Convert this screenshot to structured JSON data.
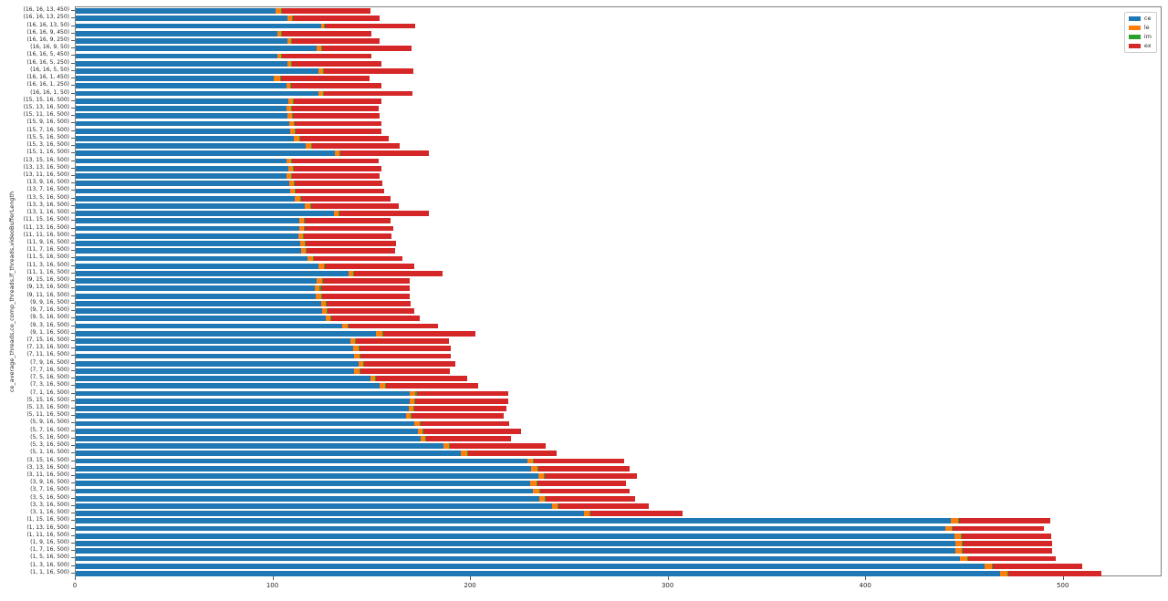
{
  "chart_data": {
    "type": "bar",
    "stacked": true,
    "orientation": "horizontal",
    "title": "",
    "xlabel": "",
    "ylabel": "ce_average_threads,ce_comp_threads,lf_threads,videoBufferLength",
    "xlim": [
      0,
      550
    ],
    "xticks": [
      0,
      100,
      200,
      300,
      400,
      500
    ],
    "grid": false,
    "legend_position": "upper right",
    "categories": [
      "(16, 16, 13, 450)",
      "(16, 16, 13, 250)",
      "(16, 16, 13, 50)",
      "(16, 16, 9, 450)",
      "(16, 16, 9, 250)",
      "(16, 16, 9, 50)",
      "(16, 16, 5, 450)",
      "(16, 16, 5, 250)",
      "(16, 16, 5, 50)",
      "(16, 16, 1, 450)",
      "(16, 16, 1, 250)",
      "(16, 16, 1, 50)",
      "(15, 15, 16, 500)",
      "(15, 13, 16, 500)",
      "(15, 11, 16, 500)",
      "(15, 9, 16, 500)",
      "(15, 7, 16, 500)",
      "(15, 5, 16, 500)",
      "(15, 3, 16, 500)",
      "(15, 1, 16, 500)",
      "(13, 15, 16, 500)",
      "(13, 13, 16, 500)",
      "(13, 11, 16, 500)",
      "(13, 9, 16, 500)",
      "(13, 7, 16, 500)",
      "(13, 5, 16, 500)",
      "(13, 3, 16, 500)",
      "(13, 1, 16, 500)",
      "(11, 15, 16, 500)",
      "(11, 13, 16, 500)",
      "(11, 11, 16, 500)",
      "(11, 9, 16, 500)",
      "(11, 7, 16, 500)",
      "(11, 5, 16, 500)",
      "(11, 3, 16, 500)",
      "(11, 1, 16, 500)",
      "(9, 15, 16, 500)",
      "(9, 13, 16, 500)",
      "(9, 11, 16, 500)",
      "(9, 9, 16, 500)",
      "(9, 7, 16, 500)",
      "(9, 5, 16, 500)",
      "(9, 3, 16, 500)",
      "(9, 1, 16, 500)",
      "(7, 15, 16, 500)",
      "(7, 13, 16, 500)",
      "(7, 11, 16, 500)",
      "(7, 9, 16, 500)",
      "(7, 7, 16, 500)",
      "(7, 5, 16, 500)",
      "(7, 3, 16, 500)",
      "(7, 1, 16, 500)",
      "(5, 15, 16, 500)",
      "(5, 13, 16, 500)",
      "(5, 11, 16, 500)",
      "(5, 9, 16, 500)",
      "(5, 7, 16, 500)",
      "(5, 5, 16, 500)",
      "(5, 3, 16, 500)",
      "(5, 1, 16, 500)",
      "(3, 15, 16, 500)",
      "(3, 13, 16, 500)",
      "(3, 11, 16, 500)",
      "(3, 9, 16, 500)",
      "(3, 7, 16, 500)",
      "(3, 5, 16, 500)",
      "(3, 3, 16, 500)",
      "(3, 1, 16, 500)",
      "(1, 15, 16, 500)",
      "(1, 13, 16, 500)",
      "(1, 11, 16, 500)",
      "(1, 9, 16, 500)",
      "(1, 7, 16, 500)",
      "(1, 5, 16, 500)",
      "(1, 3, 16, 500)",
      "(1, 1, 16, 500)"
    ],
    "series": [
      {
        "name": "ce",
        "color": "#1f77b4",
        "values": [
          101,
          107,
          124,
          102,
          107,
          122,
          102,
          107,
          123,
          100,
          106.5,
          123,
          107.5,
          106.5,
          107,
          108,
          108.5,
          110.5,
          116.5,
          131,
          106.5,
          107.5,
          106.5,
          108,
          108.5,
          111,
          116,
          130.5,
          113,
          113,
          112.5,
          113.5,
          114,
          117.5,
          123,
          138,
          122,
          121,
          121.5,
          124,
          124.5,
          126.5,
          135,
          152,
          139,
          140.5,
          141,
          143,
          141,
          149,
          154,
          169,
          169,
          168.5,
          167,
          171.5,
          173,
          174.5,
          186,
          195,
          228.5,
          230.5,
          234,
          230,
          231.5,
          234.5,
          241,
          257,
          443,
          440,
          444.5,
          445,
          445,
          447.5,
          460,
          468
        ]
      },
      {
        "name": "le",
        "color": "#ff7f0e",
        "values": [
          3,
          2.5,
          1.5,
          2,
          2,
          2,
          2,
          2,
          2,
          3.5,
          2,
          2,
          2.5,
          2.5,
          2.5,
          2.5,
          2.5,
          2.5,
          2.5,
          2.5,
          2.5,
          2.5,
          2.5,
          2.5,
          2.5,
          2.5,
          2.5,
          2.5,
          2.5,
          2.5,
          2.5,
          2.5,
          2.5,
          2.5,
          2.5,
          2.5,
          2.5,
          2.5,
          2.5,
          2.5,
          2.5,
          2.5,
          2.5,
          3,
          2.5,
          2.5,
          2.5,
          2.5,
          2.5,
          2.5,
          2.5,
          3,
          2.5,
          2.5,
          2.5,
          2.5,
          2.5,
          2.5,
          3,
          3,
          3,
          3,
          3,
          3,
          3,
          3,
          3,
          3,
          3.5,
          3.5,
          3.5,
          3.5,
          3.5,
          3.5,
          3.5,
          3.5
        ]
      },
      {
        "name": "im",
        "color": "#2ca02c",
        "values": [
          0.5,
          0.5,
          0.5,
          0.5,
          0.5,
          0.5,
          0.5,
          0.5,
          0.5,
          0.5,
          0.5,
          0.5,
          0.5,
          0.5,
          0.5,
          0.5,
          0.5,
          0.5,
          0.5,
          0.5,
          0.5,
          0.5,
          0.5,
          0.5,
          0.5,
          0.5,
          0.5,
          0.5,
          0.5,
          0.5,
          0.5,
          0.5,
          0.5,
          0.5,
          0.5,
          0.5,
          0.5,
          0.5,
          0.5,
          0.5,
          0.5,
          0.5,
          0.5,
          0.5,
          0.5,
          0.5,
          0.5,
          0.5,
          0.5,
          0.5,
          0.5,
          0.5,
          0.5,
          0.5,
          0.5,
          0.5,
          0.5,
          0.5,
          0.5,
          0.5,
          0.5,
          0.5,
          0.5,
          0.5,
          0.5,
          0.5,
          0.5,
          0.5,
          0.5,
          0.5,
          0.5,
          0.5,
          0.5,
          0.5,
          0.5,
          0.5
        ]
      },
      {
        "name": "ex",
        "color": "#d62728",
        "values": [
          44.5,
          44,
          46,
          45,
          44.5,
          45.5,
          45,
          45,
          45.5,
          44.5,
          45.5,
          45,
          44,
          44,
          44,
          43.5,
          43,
          45,
          44.5,
          44.5,
          44,
          44,
          44.5,
          44,
          44.5,
          45.5,
          44.5,
          45,
          43.5,
          44.5,
          44.5,
          45.5,
          44.5,
          45,
          45.5,
          44.5,
          44,
          45,
          44.5,
          42.5,
          44,
          44.5,
          45.5,
          47,
          47,
          46.5,
          46,
          46,
          45.5,
          46,
          46.5,
          46.5,
          47,
          46.5,
          46.5,
          45,
          49.5,
          43,
          48.5,
          45,
          45.5,
          46.5,
          46.5,
          45,
          45.5,
          45,
          45.5,
          46.5,
          46,
          46,
          45,
          45,
          45,
          44.5,
          45.5,
          47
        ]
      }
    ]
  }
}
